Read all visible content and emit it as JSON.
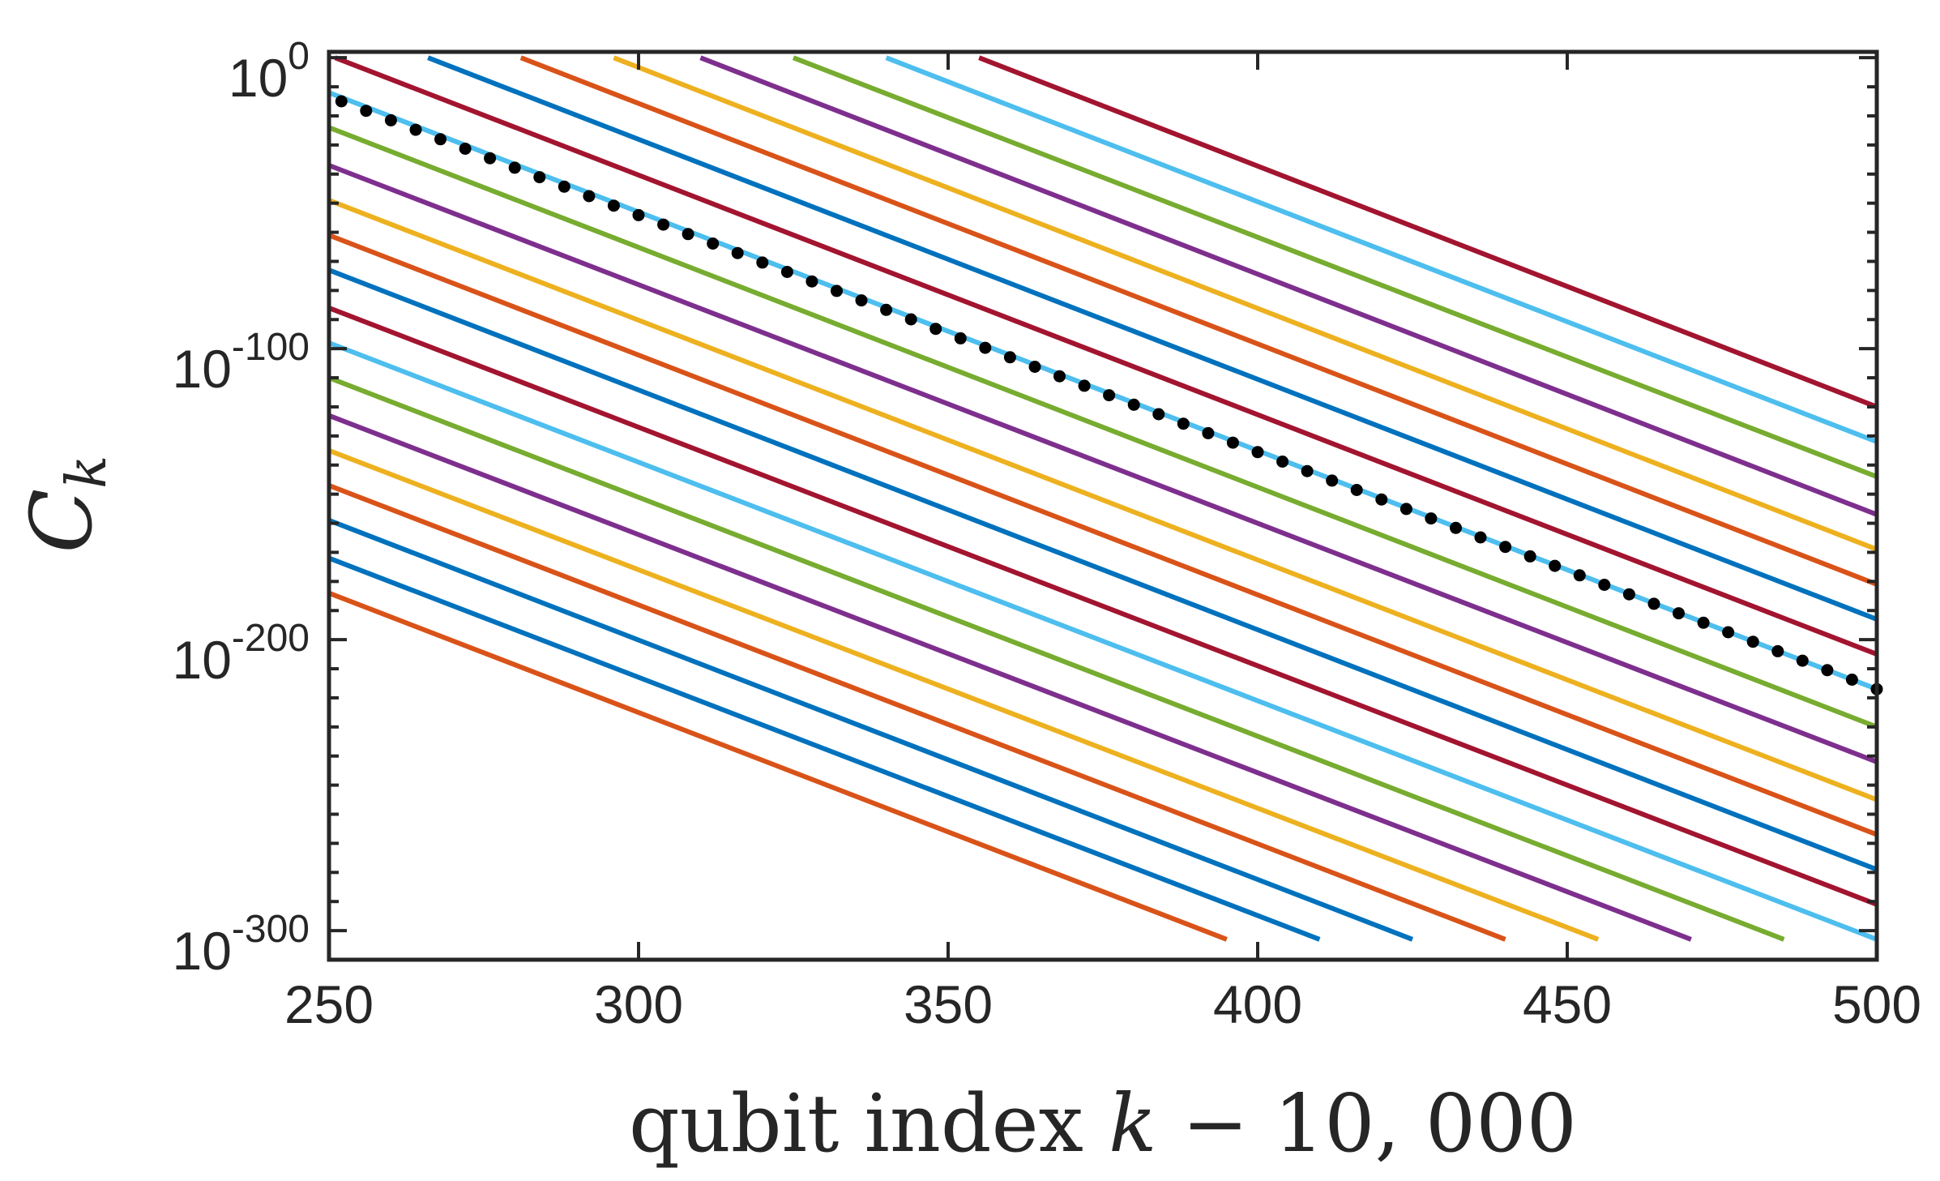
{
  "chart_data": {
    "type": "line",
    "title": "",
    "xlabel": "qubit index k − 10, 000",
    "xlabel_parts": {
      "text": "qubit index",
      "variable": "k",
      "rest": " − 10, 000"
    },
    "ylabel": "C_k",
    "ylabel_parts": {
      "symbol": "C",
      "subscript": "k"
    },
    "yscale": "log",
    "xlim": [
      250,
      500
    ],
    "ylim_log10": [
      -310,
      2
    ],
    "x_ticks": [
      250,
      300,
      350,
      400,
      450,
      500
    ],
    "x_tick_labels": [
      "250",
      "300",
      "350",
      "400",
      "450",
      "500"
    ],
    "y_ticks_log10": [
      0,
      -100,
      -200,
      -300
    ],
    "y_tick_labels": [
      {
        "base": "10",
        "exp": "0"
      },
      {
        "base": "10",
        "exp": "-100"
      },
      {
        "base": "10",
        "exp": "-200"
      },
      {
        "base": "10",
        "exp": "-300"
      }
    ],
    "grid": false,
    "legend": "none",
    "series": [
      {
        "name": "line-01",
        "color": "#A2142F",
        "x": [
          355,
          500
        ],
        "log10_y": [
          0,
          -120
        ]
      },
      {
        "name": "line-02",
        "color": "#4DBEEE",
        "x": [
          340,
          500
        ],
        "log10_y": [
          0,
          -132
        ]
      },
      {
        "name": "line-03",
        "color": "#77AC30",
        "x": [
          325,
          500
        ],
        "log10_y": [
          0,
          -144
        ]
      },
      {
        "name": "line-04",
        "color": "#7E2F8E",
        "x": [
          310,
          500
        ],
        "log10_y": [
          0,
          -157
        ]
      },
      {
        "name": "line-05",
        "color": "#EDB120",
        "x": [
          296,
          500
        ],
        "log10_y": [
          0,
          -169
        ]
      },
      {
        "name": "line-06",
        "color": "#D95319",
        "x": [
          281,
          500
        ],
        "log10_y": [
          0,
          -181
        ]
      },
      {
        "name": "line-07",
        "color": "#0072BD",
        "x": [
          266,
          500
        ],
        "log10_y": [
          0,
          -193
        ]
      },
      {
        "name": "line-08",
        "color": "#A2142F",
        "x": [
          251,
          500
        ],
        "log10_y": [
          0,
          -205
        ]
      },
      {
        "name": "line-09",
        "color": "#4DBEEE",
        "x": [
          250,
          500
        ],
        "log10_y": [
          -12,
          -217
        ]
      },
      {
        "name": "line-10",
        "color": "#77AC30",
        "x": [
          250,
          500
        ],
        "log10_y": [
          -24,
          -230
        ]
      },
      {
        "name": "line-11",
        "color": "#7E2F8E",
        "x": [
          250,
          500
        ],
        "log10_y": [
          -37,
          -242
        ]
      },
      {
        "name": "line-12",
        "color": "#EDB120",
        "x": [
          250,
          500
        ],
        "log10_y": [
          -49,
          -255
        ]
      },
      {
        "name": "line-13",
        "color": "#D95319",
        "x": [
          250,
          500
        ],
        "log10_y": [
          -61,
          -267
        ]
      },
      {
        "name": "line-14",
        "color": "#0072BD",
        "x": [
          250,
          500
        ],
        "log10_y": [
          -73,
          -279
        ]
      },
      {
        "name": "line-15",
        "color": "#A2142F",
        "x": [
          250,
          500
        ],
        "log10_y": [
          -86,
          -291
        ]
      },
      {
        "name": "line-16",
        "color": "#4DBEEE",
        "x": [
          250,
          500
        ],
        "log10_y": [
          -98,
          -303
        ]
      },
      {
        "name": "line-17",
        "color": "#77AC30",
        "x": [
          250,
          485
        ],
        "log10_y": [
          -110,
          -303
        ]
      },
      {
        "name": "line-18",
        "color": "#7E2F8E",
        "x": [
          250,
          470
        ],
        "log10_y": [
          -123,
          -303
        ]
      },
      {
        "name": "line-19",
        "color": "#EDB120",
        "x": [
          250,
          455
        ],
        "log10_y": [
          -135,
          -303
        ]
      },
      {
        "name": "line-20",
        "color": "#D95319",
        "x": [
          250,
          440
        ],
        "log10_y": [
          -147,
          -303
        ]
      },
      {
        "name": "line-21",
        "color": "#0072BD",
        "x": [
          250,
          425
        ],
        "log10_y": [
          -159,
          -303
        ]
      },
      {
        "name": "line-22",
        "color": "#0072BD",
        "x": [
          250,
          410
        ],
        "log10_y": [
          -172,
          -303
        ]
      },
      {
        "name": "line-23",
        "color": "#D95319",
        "x": [
          250,
          395
        ],
        "log10_y": [
          -184,
          -303
        ]
      }
    ],
    "dotted_series": {
      "name": "reference",
      "color": "#000000",
      "x_start": 252,
      "x_end": 500,
      "count": 63,
      "log10_y_start": -15,
      "log10_y_end": -217
    }
  }
}
